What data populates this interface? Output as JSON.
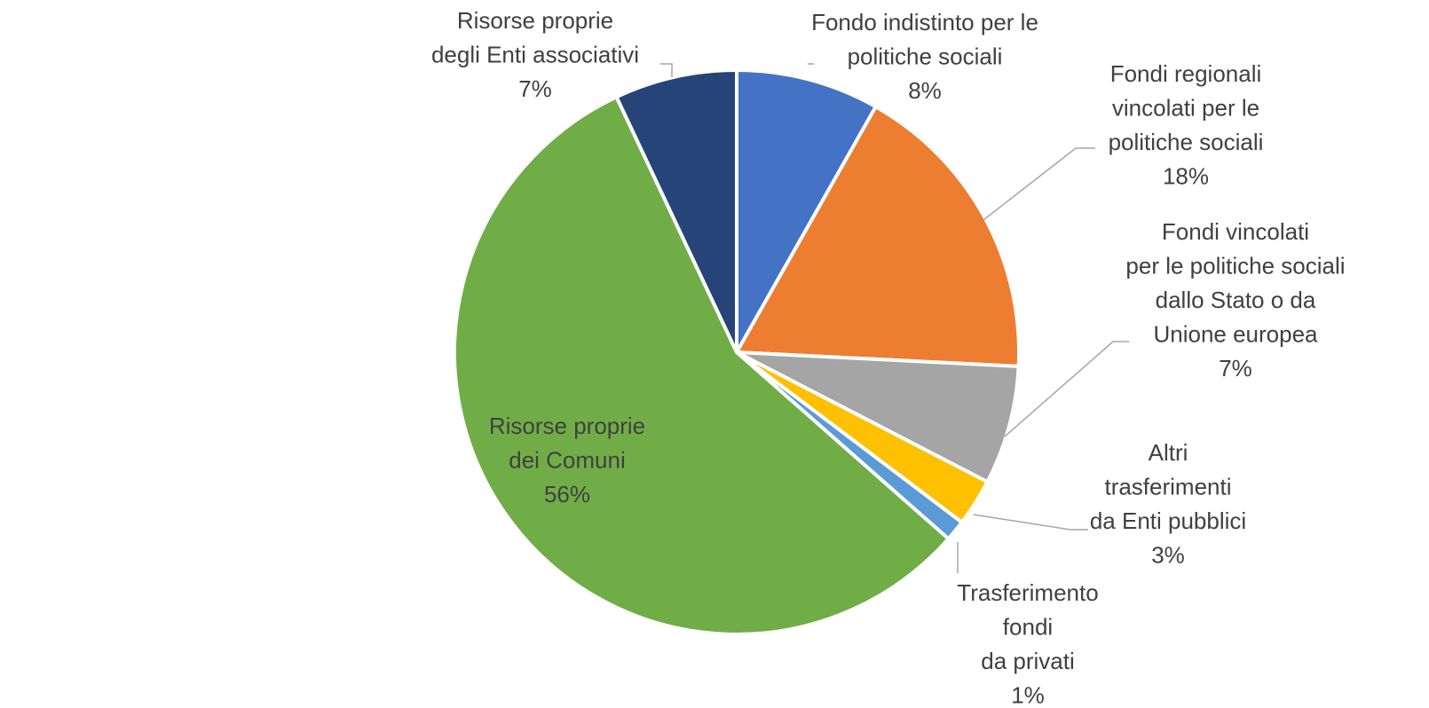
{
  "chart_data": {
    "type": "pie",
    "title": "",
    "legend": "none",
    "slices": [
      {
        "label_lines": [
          "Fondo indistinto per le",
          "politiche sociali"
        ],
        "value": 8.2,
        "display": "8%",
        "color": "#4472C4"
      },
      {
        "label_lines": [
          "Fondi regionali",
          "vincolati per le",
          "politiche sociali"
        ],
        "value": 17.6,
        "display": "18%",
        "color": "#ED7D31"
      },
      {
        "label_lines": [
          "Fondi vincolati",
          "per le politiche sociali",
          "dallo Stato o da",
          "Unione europea"
        ],
        "value": 6.8,
        "display": "7%",
        "color": "#A5A5A5"
      },
      {
        "label_lines": [
          "Altri",
          "trasferimenti",
          "da Enti pubblici"
        ],
        "value": 2.7,
        "display": "3%",
        "color": "#FFC000"
      },
      {
        "label_lines": [
          "Trasferimento",
          "fondi",
          "da privati"
        ],
        "value": 1.2,
        "display": "1%",
        "color": "#5B9BD5"
      },
      {
        "label_lines": [
          "Risorse proprie",
          "dei Comuni"
        ],
        "value": 56.5,
        "display": "56%",
        "color": "#70AD47"
      },
      {
        "label_lines": [
          "Risorse proprie",
          "degli Enti associativi"
        ],
        "value": 7.0,
        "display": "7%",
        "color": "#264478"
      }
    ]
  }
}
